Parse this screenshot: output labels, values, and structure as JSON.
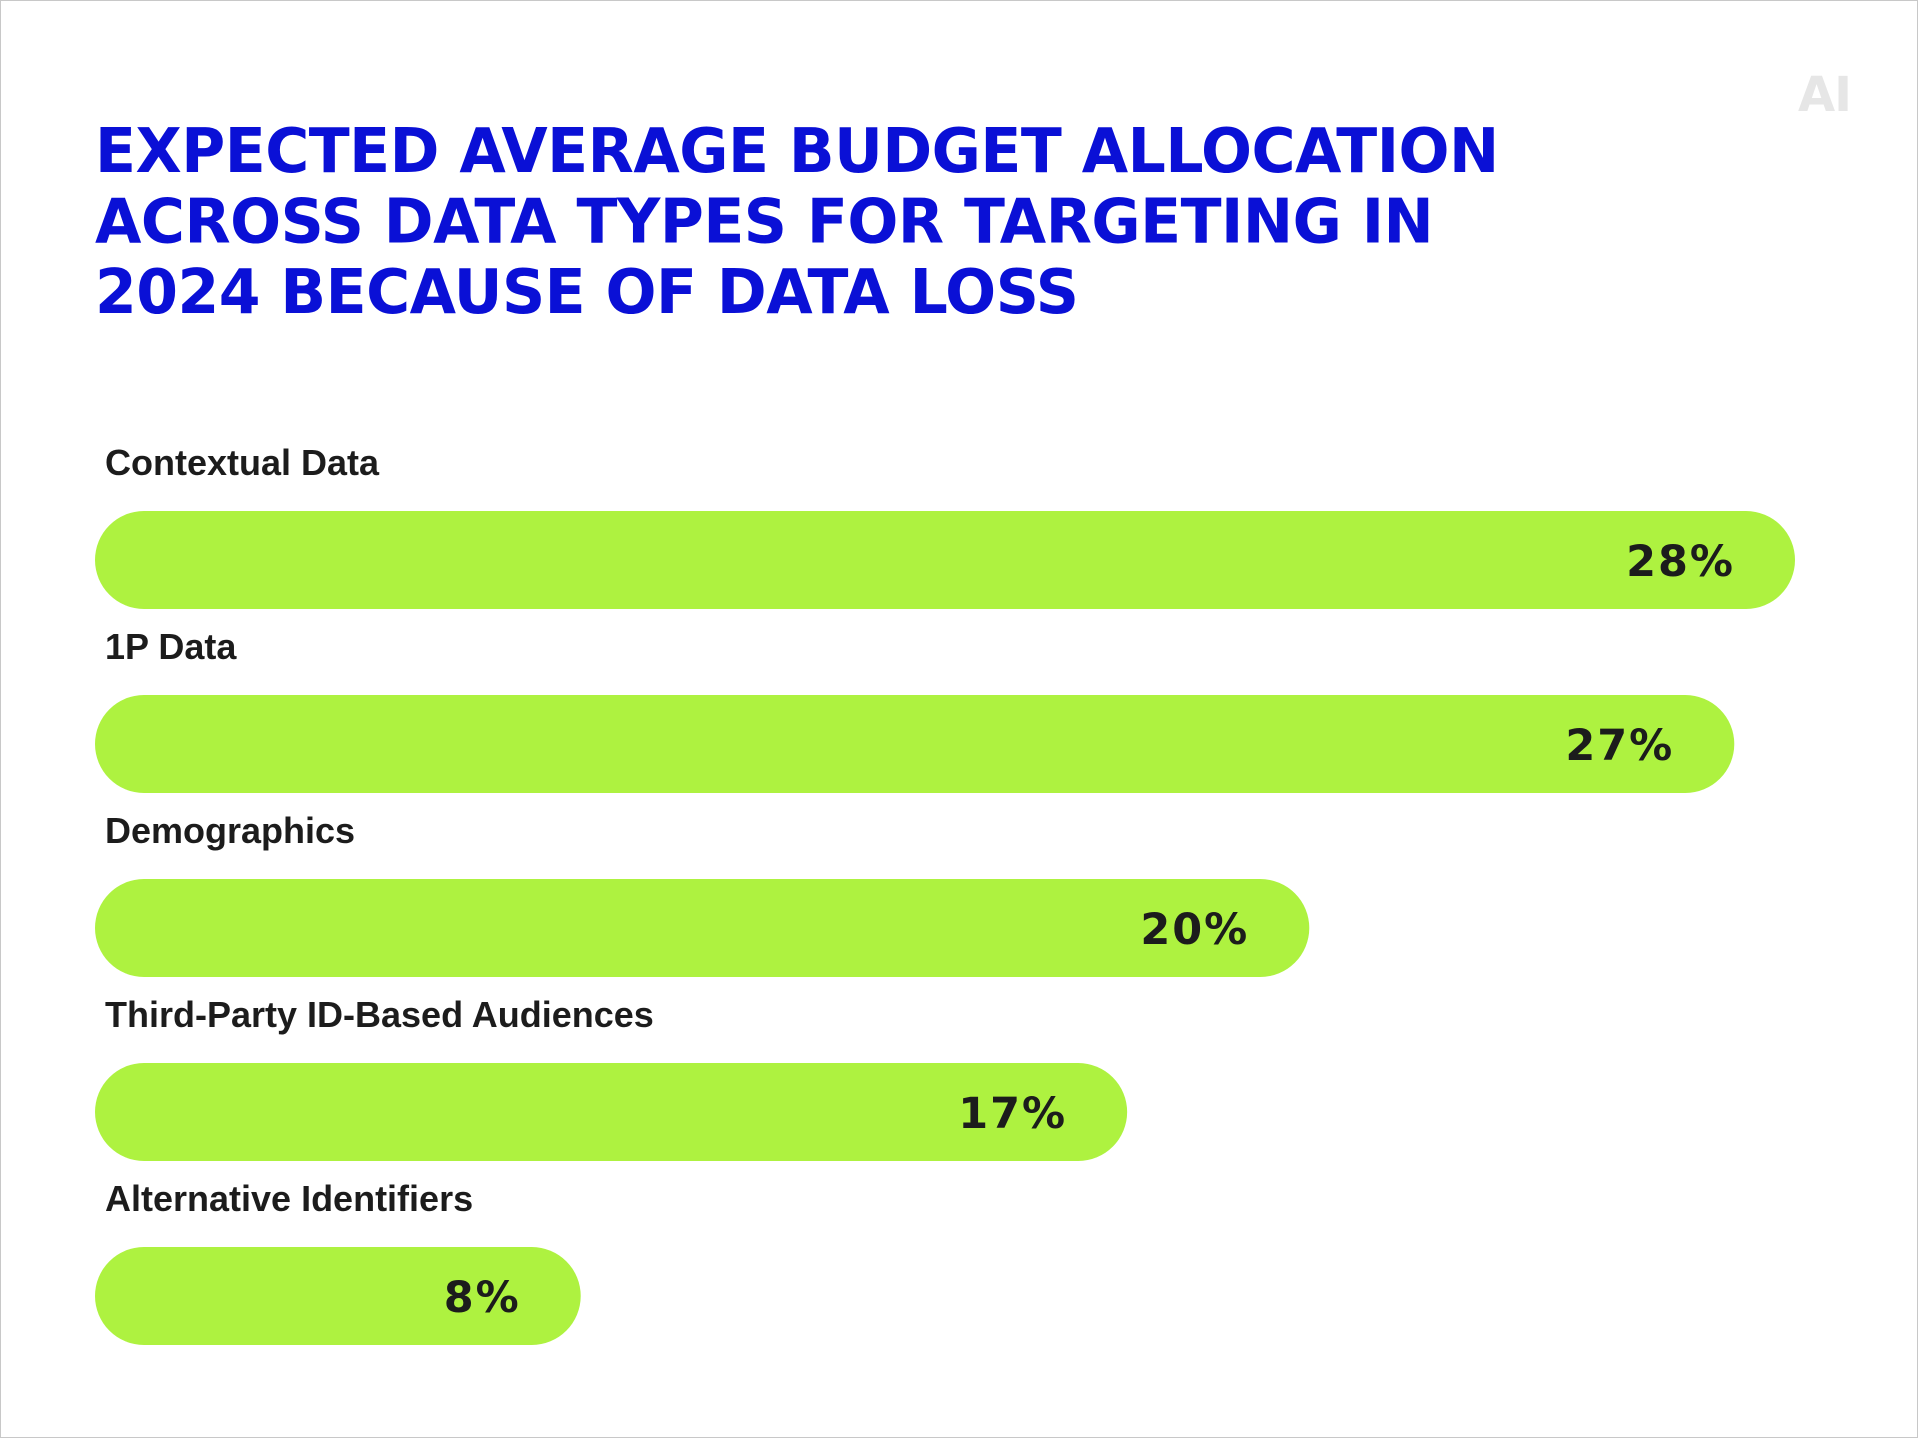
{
  "logo": "AI",
  "colors": {
    "title": "#0a10d6",
    "bar": "#aef240",
    "label": "#1c1c1c",
    "logo": "#e6e6e6"
  },
  "chart_data": {
    "type": "bar",
    "orientation": "horizontal",
    "title": "EXPECTED AVERAGE BUDGET ALLOCATION ACROSS DATA TYPES FOR TARGETING IN 2024 BECAUSE OF DATA LOSS",
    "categories": [
      "Contextual Data",
      "1P Data",
      "Demographics",
      "Third-Party ID-Based Audiences",
      "Alternative Identifiers"
    ],
    "values": [
      28,
      27,
      20,
      17,
      8
    ],
    "value_labels": [
      "28%",
      "27%",
      "20%",
      "17%",
      "8%"
    ],
    "unit": "%",
    "grid": false,
    "legend": "none"
  }
}
